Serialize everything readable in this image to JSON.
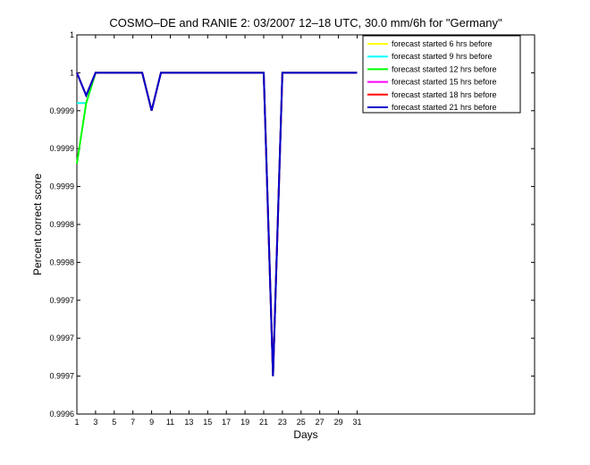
{
  "chart_data": {
    "type": "line",
    "title": "COSMO–DE and RANIE 2: 03/2007 12–18 UTC, 30.0 mm/6h for \"Germany\"",
    "xlabel": "Days",
    "ylabel": "Percent correct score",
    "xlim": [
      1,
      50
    ],
    "ylim": [
      0.99955,
      1.00005
    ],
    "x_ticks": [
      1,
      3,
      5,
      7,
      9,
      11,
      13,
      15,
      17,
      19,
      21,
      23,
      25,
      27,
      29,
      31
    ],
    "x_tick_labels": [
      "1",
      "3",
      "5",
      "7",
      "9",
      "11",
      "13",
      "15",
      "17",
      "19",
      "21",
      "23",
      "25",
      "27",
      "29",
      "31"
    ],
    "y_ticks": [
      0.99955,
      0.9996,
      0.99965,
      0.9997,
      0.99975,
      0.9998,
      0.99985,
      0.9999,
      0.99995,
      1.0,
      1.00005
    ],
    "y_tick_labels": [
      "0.9996",
      "0.9997",
      "0.9997",
      "0.9997",
      "0.9998",
      "0.9998",
      "0.9999",
      "0.9999",
      "0.9999",
      "1",
      "1"
    ],
    "grid": false,
    "legend_position": "top-right",
    "x": [
      1,
      2,
      3,
      4,
      5,
      6,
      7,
      8,
      9,
      10,
      11,
      12,
      13,
      14,
      15,
      16,
      17,
      18,
      19,
      20,
      21,
      22,
      23,
      24,
      25,
      26,
      27,
      28,
      29,
      30,
      31
    ],
    "series": [
      {
        "name": "forecast started 6 hrs before",
        "color": "#ffff00",
        "values": [
          0.99996,
          0.99996,
          1,
          1,
          1,
          1,
          1,
          1,
          0.99995,
          1,
          1,
          1,
          1,
          1,
          1,
          1,
          1,
          1,
          1,
          1,
          1,
          0.9996,
          1,
          1,
          1,
          1,
          1,
          1,
          1,
          1,
          1
        ]
      },
      {
        "name": "forecast started 9 hrs before",
        "color": "#00ffff",
        "values": [
          0.99996,
          0.99996,
          1,
          1,
          1,
          1,
          1,
          1,
          0.99995,
          1,
          1,
          1,
          1,
          1,
          1,
          1,
          1,
          1,
          1,
          1,
          1,
          0.9996,
          1,
          1,
          1,
          1,
          1,
          1,
          1,
          1,
          1
        ]
      },
      {
        "name": "forecast started 12 hrs before",
        "color": "#00ff00",
        "values": [
          0.99988,
          0.99996,
          1,
          1,
          1,
          1,
          1,
          1,
          0.99995,
          1,
          1,
          1,
          1,
          1,
          1,
          1,
          1,
          1,
          1,
          1,
          1,
          0.9996,
          1,
          1,
          1,
          1,
          1,
          1,
          1,
          1,
          1
        ]
      },
      {
        "name": "forecast started 15 hrs before",
        "color": "#ff00ff",
        "values": [
          1,
          0.99997,
          1,
          1,
          1,
          1,
          1,
          1,
          0.99995,
          1,
          1,
          1,
          1,
          1,
          1,
          1,
          1,
          1,
          1,
          1,
          1,
          0.9996,
          1,
          1,
          1,
          1,
          1,
          1,
          1,
          1,
          1
        ]
      },
      {
        "name": "forecast started 18 hrs before",
        "color": "#ff0000",
        "values": [
          1,
          0.99997,
          1,
          1,
          1,
          1,
          1,
          1,
          0.99995,
          1,
          1,
          1,
          1,
          1,
          1,
          1,
          1,
          1,
          1,
          1,
          1,
          0.9996,
          1,
          1,
          1,
          1,
          1,
          1,
          1,
          1,
          1
        ]
      },
      {
        "name": "forecast started 21 hrs before",
        "color": "#0000cc",
        "values": [
          1,
          0.99997,
          1,
          1,
          1,
          1,
          1,
          1,
          0.99995,
          1,
          1,
          1,
          1,
          1,
          1,
          1,
          1,
          1,
          1,
          1,
          1,
          0.9996,
          1,
          1,
          1,
          1,
          1,
          1,
          1,
          1,
          1
        ]
      }
    ]
  }
}
